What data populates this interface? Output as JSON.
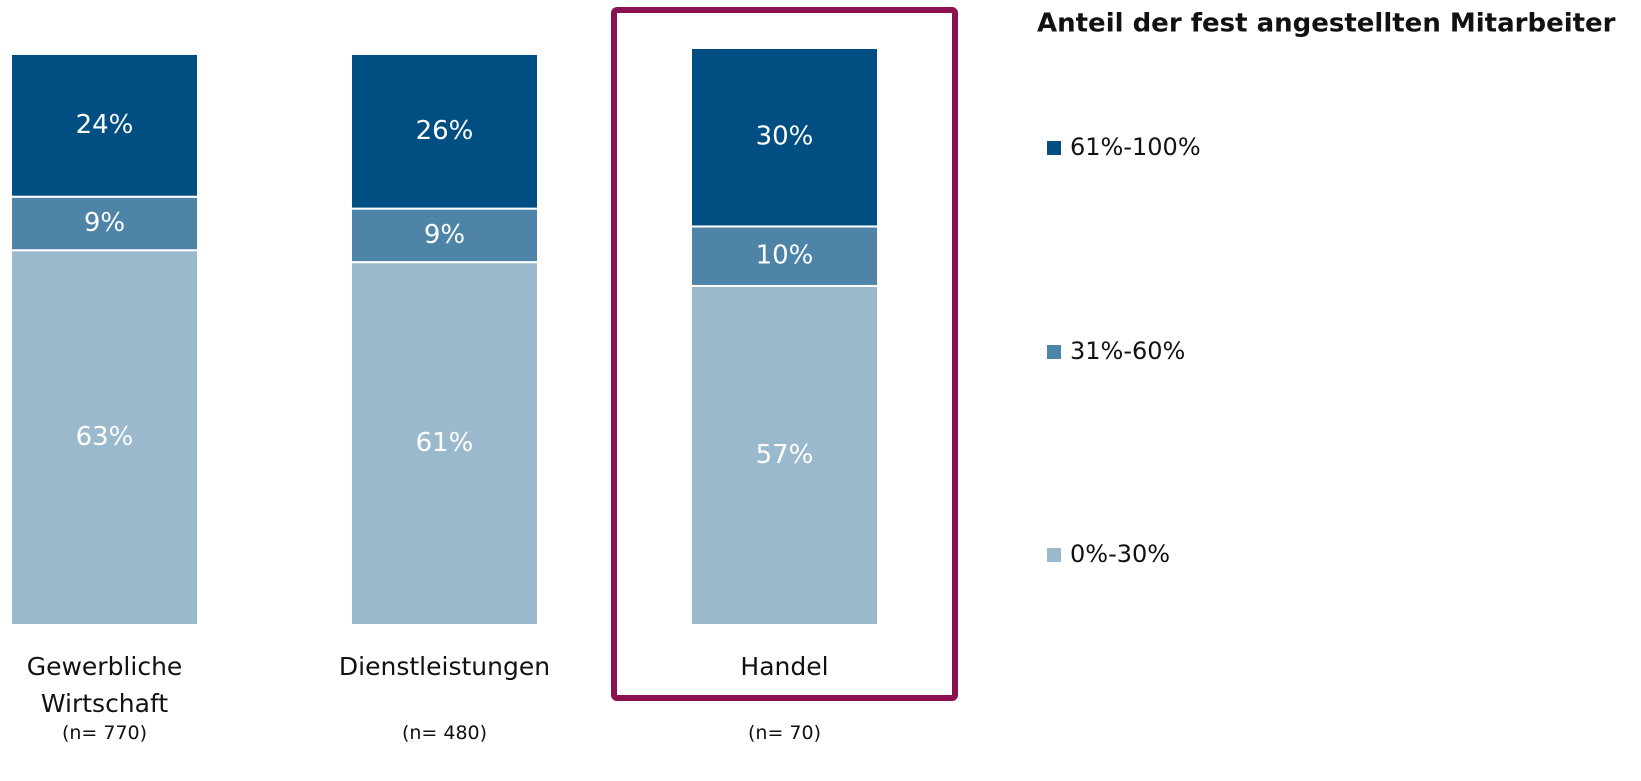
{
  "chart_data": {
    "type": "stacked_bar",
    "legend_title": "Anteil der fest angestellten Mitarbeiter",
    "categories": [
      "Gewerbliche Wirtschaft",
      "Dienstleistungen",
      "Handel"
    ],
    "n_labels": [
      "(n= 770)",
      "(n= 480)",
      "(n= 70)"
    ],
    "ylim": [
      0,
      97
    ],
    "legend": "right",
    "series": [
      {
        "name": "0%-30%",
        "color": "#9bb9cc",
        "values": [
          63,
          61,
          57
        ],
        "value_labels": [
          "63%",
          "61%",
          "57%"
        ]
      },
      {
        "name": "31%-60%",
        "color": "#4d84a8",
        "values": [
          9,
          9,
          10
        ],
        "value_labels": [
          "9%",
          "9%",
          "10%"
        ]
      },
      {
        "name": "61%-100%",
        "color": "#004e82",
        "values": [
          24,
          26,
          30
        ],
        "value_labels": [
          "24%",
          "26%",
          "30%"
        ]
      }
    ]
  }
}
